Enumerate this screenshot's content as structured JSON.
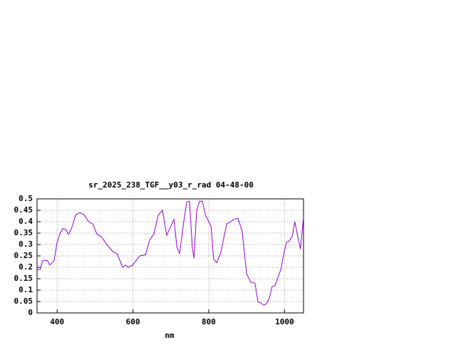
{
  "chart_data": {
    "type": "line",
    "title": "sr_2025_238_TGF__y03_r_rad 04-48-00",
    "x_label": "nm",
    "x": [
      347,
      355,
      362,
      374,
      381,
      392,
      400,
      408,
      415,
      423,
      430,
      438,
      449,
      460,
      471,
      483,
      494,
      505,
      516,
      531,
      546,
      558,
      573,
      580,
      588,
      599,
      618,
      633,
      644,
      655,
      667,
      678,
      689,
      700,
      708,
      716,
      723,
      734,
      742,
      749,
      757,
      761,
      768,
      776,
      783,
      791,
      806,
      813,
      821,
      832,
      847,
      858,
      866,
      877,
      888,
      900,
      911,
      922,
      930,
      937,
      945,
      952,
      960,
      967,
      975,
      982,
      990,
      997,
      1005,
      1012,
      1020,
      1027,
      1035,
      1042,
      1050
    ],
    "values": [
      0.19,
      0.19,
      0.23,
      0.23,
      0.21,
      0.23,
      0.31,
      0.35,
      0.37,
      0.365,
      0.345,
      0.37,
      0.43,
      0.44,
      0.43,
      0.4,
      0.39,
      0.345,
      0.335,
      0.3,
      0.27,
      0.26,
      0.2,
      0.21,
      0.2,
      0.21,
      0.25,
      0.255,
      0.32,
      0.345,
      0.43,
      0.45,
      0.34,
      0.38,
      0.41,
      0.29,
      0.26,
      0.4,
      0.485,
      0.49,
      0.28,
      0.24,
      0.45,
      0.49,
      0.49,
      0.43,
      0.38,
      0.235,
      0.22,
      0.265,
      0.39,
      0.4,
      0.41,
      0.415,
      0.36,
      0.17,
      0.135,
      0.13,
      0.047,
      0.044,
      0.034,
      0.04,
      0.065,
      0.115,
      0.12,
      0.153,
      0.19,
      0.25,
      0.31,
      0.315,
      0.334,
      0.4,
      0.334,
      0.28,
      0.42
    ],
    "color": "#9400d3",
    "xlim": [
      347,
      1050
    ],
    "ylim": [
      0,
      0.5
    ],
    "xticks": [
      400,
      600,
      800,
      1000
    ],
    "yticks": [
      0,
      0.05,
      0.1,
      0.15,
      0.2,
      0.25,
      0.3,
      0.35,
      0.4,
      0.45,
      0.5
    ],
    "grid": true
  }
}
